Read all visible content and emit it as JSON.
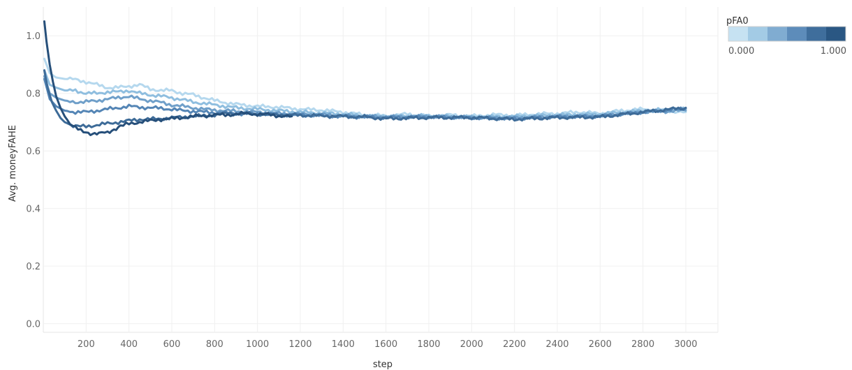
{
  "chart_data": {
    "type": "line",
    "xlabel": "step",
    "ylabel": "Avg. moneyFAHE",
    "xlim": [
      0,
      3150
    ],
    "ylim": [
      -0.03,
      1.1
    ],
    "x_ticks": [
      200,
      400,
      600,
      800,
      1000,
      1200,
      1400,
      1600,
      1800,
      2000,
      2200,
      2400,
      2600,
      2800,
      3000
    ],
    "y_ticks": [
      0.0,
      0.2,
      0.4,
      0.6,
      0.8,
      1.0
    ],
    "y_tick_labels": [
      "0.0",
      "0.2",
      "0.4",
      "0.6",
      "0.8",
      "1.0"
    ],
    "grid": true,
    "legend": {
      "title": "pFA0",
      "placement": "top-right",
      "min_label": "0.000",
      "max_label": "1.000",
      "swatches": [
        "#c6e2f2",
        "#a3cbe5",
        "#80acd1",
        "#5d8cba",
        "#3f6e9c",
        "#2a5783"
      ]
    },
    "series": [
      {
        "color": "#b5d8ee",
        "points": [
          [
            5,
            0.92
          ],
          [
            30,
            0.87
          ],
          [
            60,
            0.855
          ],
          [
            100,
            0.85
          ],
          [
            150,
            0.848
          ],
          [
            200,
            0.84
          ],
          [
            250,
            0.83
          ],
          [
            300,
            0.82
          ],
          [
            350,
            0.82
          ],
          [
            400,
            0.825
          ],
          [
            450,
            0.83
          ],
          [
            500,
            0.815
          ],
          [
            550,
            0.81
          ],
          [
            600,
            0.81
          ],
          [
            650,
            0.8
          ],
          [
            700,
            0.795
          ],
          [
            750,
            0.785
          ],
          [
            800,
            0.775
          ],
          [
            850,
            0.768
          ],
          [
            900,
            0.762
          ],
          [
            1000,
            0.755
          ],
          [
            1100,
            0.752
          ],
          [
            1200,
            0.745
          ],
          [
            1300,
            0.742
          ],
          [
            1400,
            0.735
          ],
          [
            1500,
            0.725
          ],
          [
            1600,
            0.722
          ],
          [
            1700,
            0.728
          ],
          [
            1800,
            0.72
          ],
          [
            1900,
            0.725
          ],
          [
            2000,
            0.72
          ],
          [
            2100,
            0.726
          ],
          [
            2200,
            0.723
          ],
          [
            2300,
            0.728
          ],
          [
            2400,
            0.73
          ],
          [
            2500,
            0.735
          ],
          [
            2600,
            0.73
          ],
          [
            2700,
            0.74
          ],
          [
            2800,
            0.745
          ],
          [
            2900,
            0.74
          ],
          [
            3000,
            0.735
          ]
        ]
      },
      {
        "color": "#8fbedf",
        "points": [
          [
            5,
            0.88
          ],
          [
            30,
            0.83
          ],
          [
            60,
            0.82
          ],
          [
            100,
            0.81
          ],
          [
            150,
            0.81
          ],
          [
            200,
            0.8
          ],
          [
            250,
            0.8
          ],
          [
            300,
            0.805
          ],
          [
            350,
            0.805
          ],
          [
            400,
            0.81
          ],
          [
            450,
            0.8
          ],
          [
            500,
            0.795
          ],
          [
            550,
            0.79
          ],
          [
            600,
            0.785
          ],
          [
            650,
            0.778
          ],
          [
            700,
            0.77
          ],
          [
            750,
            0.765
          ],
          [
            800,
            0.76
          ],
          [
            850,
            0.755
          ],
          [
            900,
            0.75
          ],
          [
            1000,
            0.745
          ],
          [
            1100,
            0.74
          ],
          [
            1200,
            0.735
          ],
          [
            1300,
            0.732
          ],
          [
            1400,
            0.728
          ],
          [
            1500,
            0.722
          ],
          [
            1600,
            0.72
          ],
          [
            1800,
            0.722
          ],
          [
            2000,
            0.718
          ],
          [
            2200,
            0.72
          ],
          [
            2400,
            0.725
          ],
          [
            2600,
            0.728
          ],
          [
            2800,
            0.74
          ],
          [
            3000,
            0.745
          ]
        ]
      },
      {
        "color": "#6f9fc9",
        "points": [
          [
            5,
            0.86
          ],
          [
            30,
            0.8
          ],
          [
            60,
            0.785
          ],
          [
            100,
            0.775
          ],
          [
            150,
            0.77
          ],
          [
            200,
            0.77
          ],
          [
            250,
            0.775
          ],
          [
            300,
            0.78
          ],
          [
            350,
            0.785
          ],
          [
            400,
            0.79
          ],
          [
            450,
            0.78
          ],
          [
            500,
            0.775
          ],
          [
            550,
            0.768
          ],
          [
            600,
            0.76
          ],
          [
            650,
            0.755
          ],
          [
            700,
            0.75
          ],
          [
            750,
            0.745
          ],
          [
            800,
            0.742
          ],
          [
            850,
            0.74
          ],
          [
            900,
            0.738
          ],
          [
            1000,
            0.735
          ],
          [
            1100,
            0.73
          ],
          [
            1200,
            0.728
          ],
          [
            1300,
            0.726
          ],
          [
            1400,
            0.722
          ],
          [
            1500,
            0.72
          ],
          [
            1600,
            0.718
          ],
          [
            1800,
            0.72
          ],
          [
            2000,
            0.716
          ],
          [
            2200,
            0.715
          ],
          [
            2400,
            0.72
          ],
          [
            2600,
            0.722
          ],
          [
            2800,
            0.735
          ],
          [
            3000,
            0.74
          ]
        ]
      },
      {
        "color": "#5485b5",
        "points": [
          [
            5,
            0.85
          ],
          [
            30,
            0.78
          ],
          [
            60,
            0.755
          ],
          [
            100,
            0.74
          ],
          [
            150,
            0.735
          ],
          [
            200,
            0.735
          ],
          [
            250,
            0.74
          ],
          [
            300,
            0.745
          ],
          [
            350,
            0.75
          ],
          [
            400,
            0.755
          ],
          [
            450,
            0.752
          ],
          [
            500,
            0.75
          ],
          [
            550,
            0.748
          ],
          [
            600,
            0.745
          ],
          [
            650,
            0.74
          ],
          [
            700,
            0.738
          ],
          [
            750,
            0.735
          ],
          [
            800,
            0.733
          ],
          [
            850,
            0.732
          ],
          [
            900,
            0.73
          ],
          [
            1000,
            0.728
          ],
          [
            1100,
            0.726
          ],
          [
            1200,
            0.725
          ],
          [
            1300,
            0.722
          ],
          [
            1400,
            0.72
          ],
          [
            1500,
            0.718
          ],
          [
            1600,
            0.716
          ],
          [
            1800,
            0.718
          ],
          [
            2000,
            0.715
          ],
          [
            2200,
            0.712
          ],
          [
            2400,
            0.718
          ],
          [
            2600,
            0.72
          ],
          [
            2800,
            0.735
          ],
          [
            3000,
            0.748
          ]
        ]
      },
      {
        "color": "#3d6b98",
        "points": [
          [
            5,
            0.88
          ],
          [
            20,
            0.82
          ],
          [
            40,
            0.77
          ],
          [
            60,
            0.74
          ],
          [
            80,
            0.715
          ],
          [
            100,
            0.7
          ],
          [
            130,
            0.69
          ],
          [
            160,
            0.685
          ],
          [
            200,
            0.685
          ],
          [
            250,
            0.69
          ],
          [
            300,
            0.695
          ],
          [
            350,
            0.7
          ],
          [
            400,
            0.705
          ],
          [
            450,
            0.71
          ],
          [
            500,
            0.71
          ],
          [
            550,
            0.712
          ],
          [
            600,
            0.715
          ],
          [
            650,
            0.718
          ],
          [
            700,
            0.72
          ],
          [
            750,
            0.722
          ],
          [
            800,
            0.725
          ],
          [
            850,
            0.73
          ],
          [
            900,
            0.73
          ],
          [
            1000,
            0.728
          ],
          [
            1100,
            0.726
          ],
          [
            1200,
            0.724
          ],
          [
            1300,
            0.722
          ],
          [
            1400,
            0.72
          ],
          [
            1500,
            0.718
          ],
          [
            1600,
            0.712
          ],
          [
            1800,
            0.716
          ],
          [
            2000,
            0.716
          ],
          [
            2200,
            0.71
          ],
          [
            2400,
            0.716
          ],
          [
            2600,
            0.718
          ],
          [
            2800,
            0.735
          ],
          [
            3000,
            0.75
          ]
        ]
      },
      {
        "color": "#264f7a",
        "points": [
          [
            5,
            1.05
          ],
          [
            15,
            0.98
          ],
          [
            30,
            0.9
          ],
          [
            45,
            0.84
          ],
          [
            60,
            0.79
          ],
          [
            80,
            0.75
          ],
          [
            100,
            0.72
          ],
          [
            125,
            0.695
          ],
          [
            150,
            0.68
          ],
          [
            175,
            0.67
          ],
          [
            200,
            0.665
          ],
          [
            230,
            0.66
          ],
          [
            260,
            0.66
          ],
          [
            300,
            0.665
          ],
          [
            330,
            0.675
          ],
          [
            360,
            0.685
          ],
          [
            400,
            0.695
          ],
          [
            450,
            0.7
          ],
          [
            500,
            0.705
          ],
          [
            550,
            0.71
          ],
          [
            600,
            0.712
          ],
          [
            650,
            0.716
          ],
          [
            700,
            0.72
          ],
          [
            750,
            0.722
          ],
          [
            800,
            0.725
          ],
          [
            850,
            0.725
          ],
          [
            900,
            0.728
          ],
          [
            950,
            0.73
          ],
          [
            1000,
            0.728
          ],
          [
            1050,
            0.726
          ],
          [
            1100,
            0.722
          ],
          [
            1140,
            0.72
          ],
          [
            1160,
            0.72
          ]
        ]
      }
    ]
  }
}
